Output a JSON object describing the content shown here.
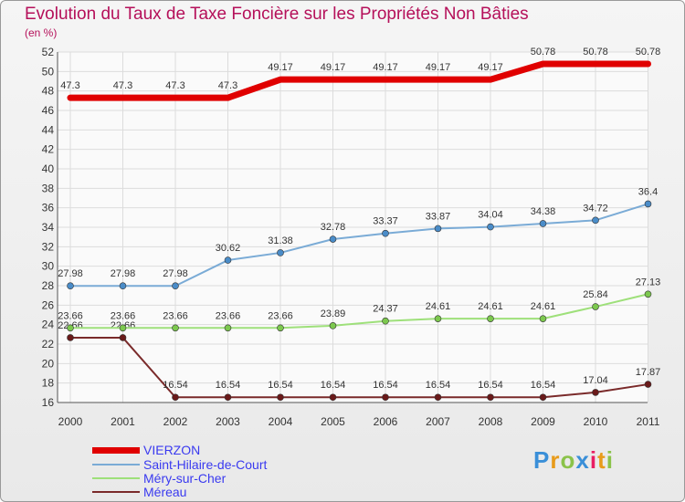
{
  "title": "Evolution du Taux de Taxe Foncière sur les Propriétés Non Bâties",
  "unit_label": "(en %)",
  "brand": {
    "letters": [
      "P",
      "r",
      "o",
      "x",
      "i",
      "t",
      "i"
    ],
    "colors": [
      "#3a8fd8",
      "#e89b1a",
      "#8bc34a",
      "#3a8fd8",
      "#e91e63",
      "#e89b1a",
      "#8bc34a"
    ]
  },
  "chart_data": {
    "type": "line",
    "title": "Evolution du Taux de Taxe Foncière sur les Propriétés Non Bâties",
    "ylabel": "(en %)",
    "xlabel": "",
    "ylim": [
      16,
      52
    ],
    "yticks": [
      16,
      18,
      20,
      22,
      24,
      26,
      28,
      30,
      32,
      34,
      36,
      38,
      40,
      42,
      44,
      46,
      48,
      50,
      52
    ],
    "x": [
      "2000",
      "2001",
      "2002",
      "2003",
      "2004",
      "2005",
      "2006",
      "2007",
      "2008",
      "2009",
      "2010",
      "2011"
    ],
    "grid": true,
    "series": [
      {
        "name": "VIERZON",
        "color": "#e00000",
        "width": 7,
        "marker": false,
        "values": [
          47.3,
          47.3,
          47.3,
          47.3,
          49.17,
          49.17,
          49.17,
          49.17,
          49.17,
          50.78,
          50.78,
          50.78
        ],
        "labels": [
          "47.3",
          "47.3",
          "47.3",
          "47.3",
          "49.17",
          "49.17",
          "49.17",
          "49.17",
          "49.17",
          "50.78",
          "50.78",
          "50.78"
        ]
      },
      {
        "name": "Saint-Hilaire-de-Court",
        "color": "#7aabd6",
        "width": 2,
        "marker": true,
        "marker_color": "#4a8cc8",
        "values": [
          27.98,
          27.98,
          27.98,
          30.62,
          31.38,
          32.78,
          33.37,
          33.87,
          34.04,
          34.38,
          34.72,
          36.4
        ],
        "labels": [
          "27.98",
          "27.98",
          "27.98",
          "30.62",
          "31.38",
          "32.78",
          "33.37",
          "33.87",
          "34.04",
          "34.38",
          "34.72",
          "36.4"
        ]
      },
      {
        "name": "Méry-sur-Cher",
        "color": "#9ee07a",
        "width": 2,
        "marker": true,
        "marker_color": "#7cc84e",
        "values": [
          23.66,
          23.66,
          23.66,
          23.66,
          23.66,
          23.89,
          24.37,
          24.61,
          24.61,
          24.61,
          25.84,
          27.13
        ],
        "labels": [
          "23.66",
          "23.66",
          "23.66",
          "23.66",
          "23.66",
          "23.89",
          "24.37",
          "24.61",
          "24.61",
          "24.61",
          "25.84",
          "27.13"
        ]
      },
      {
        "name": "Méreau",
        "color": "#7a2a2a",
        "width": 2,
        "marker": true,
        "marker_color": "#6a1a1a",
        "values": [
          22.66,
          22.66,
          16.54,
          16.54,
          16.54,
          16.54,
          16.54,
          16.54,
          16.54,
          16.54,
          17.04,
          17.87
        ],
        "labels": [
          "22.66",
          "22.66",
          "16.54",
          "16.54",
          "16.54",
          "16.54",
          "16.54",
          "16.54",
          "16.54",
          "16.54",
          "17.04",
          "17.87"
        ]
      }
    ]
  }
}
